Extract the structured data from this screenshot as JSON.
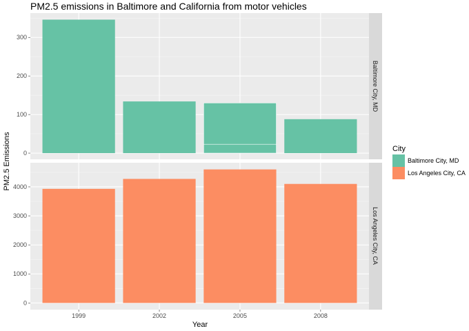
{
  "chart_data": {
    "type": "bar",
    "title": "PM2.5 emissions in Baltimore and California from motor vehicles",
    "xlabel": "Year",
    "ylabel": "PM2.5 Emissions",
    "categories": [
      "1999",
      "2002",
      "2005",
      "2008"
    ],
    "grid": true,
    "legend_position": "right",
    "legend_title": "City",
    "facets": [
      {
        "name": "Baltimore City, MD",
        "color": "#66c2a5",
        "values": [
          346,
          134,
          130,
          88
        ],
        "segments": [
          [
            346
          ],
          [
            134
          ],
          [
            23,
            107
          ],
          [
            88
          ]
        ],
        "ylim": [
          -16,
          363
        ],
        "yticks": [
          0,
          100,
          200,
          300
        ]
      },
      {
        "name": "Los Angeles City, CA",
        "color": "#fc8d62",
        "values": [
          3931,
          4274,
          4601,
          4101
        ],
        "segments": [
          [
            3931
          ],
          [
            4274
          ],
          [
            4601
          ],
          [
            4101
          ]
        ],
        "ylim": [
          -230,
          4831
        ],
        "yticks": [
          0,
          1000,
          2000,
          3000,
          4000
        ]
      }
    ]
  }
}
